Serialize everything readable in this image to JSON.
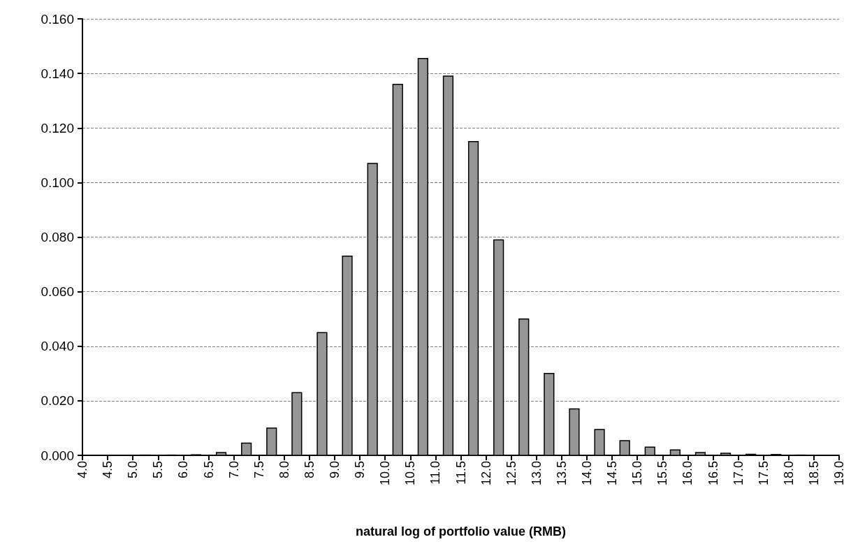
{
  "chart_data": {
    "type": "histogram",
    "xlabel": "natural log of portfolio value (RMB)",
    "bins": [
      4.0,
      4.5,
      5.0,
      5.5,
      6.0,
      6.5,
      7.0,
      7.5,
      8.0,
      8.5,
      9.0,
      9.5,
      10.0,
      10.5,
      11.0,
      11.5,
      12.0,
      12.5,
      13.0,
      13.5,
      14.0,
      14.5,
      15.0,
      15.5,
      16.0,
      16.5,
      17.0,
      17.5,
      18.0,
      18.5,
      19.0
    ],
    "values": [
      0,
      0,
      0.0001,
      0.0001,
      0.0002,
      0.001,
      0.0045,
      0.01,
      0.023,
      0.045,
      0.073,
      0.107,
      0.136,
      0.1455,
      0.139,
      0.115,
      0.079,
      0.05,
      0.03,
      0.017,
      0.0095,
      0.0054,
      0.003,
      0.002,
      0.001,
      0.0008,
      0.0004,
      0.0003,
      0.0001,
      0
    ],
    "color": "#969696",
    "xlim": [
      4,
      19
    ],
    "xticks": [
      {
        "value": 4,
        "label": "4.0"
      },
      {
        "value": 4.5,
        "label": "4.5"
      },
      {
        "value": 5,
        "label": "5.0"
      },
      {
        "value": 5.5,
        "label": "5.5"
      },
      {
        "value": 6,
        "label": "6.0"
      },
      {
        "value": 6.5,
        "label": "6.5"
      },
      {
        "value": 7,
        "label": "7.0"
      },
      {
        "value": 7.5,
        "label": "7.5"
      },
      {
        "value": 8,
        "label": "8.0"
      },
      {
        "value": 8.5,
        "label": "8.5"
      },
      {
        "value": 9,
        "label": "9.0"
      },
      {
        "value": 9.5,
        "label": "9.5"
      },
      {
        "value": 10,
        "label": "10.0"
      },
      {
        "value": 10.5,
        "label": "10.5"
      },
      {
        "value": 11,
        "label": "11.0"
      },
      {
        "value": 11.5,
        "label": "11.5"
      },
      {
        "value": 12,
        "label": "12.0"
      },
      {
        "value": 12.5,
        "label": "12.5"
      },
      {
        "value": 13,
        "label": "13.0"
      },
      {
        "value": 13.5,
        "label": "13.5"
      },
      {
        "value": 14,
        "label": "14.0"
      },
      {
        "value": 14.5,
        "label": "14.5"
      },
      {
        "value": 15,
        "label": "15.0"
      },
      {
        "value": 15.5,
        "label": "15.5"
      },
      {
        "value": 16,
        "label": "16.0"
      },
      {
        "value": 16.5,
        "label": "16.5"
      },
      {
        "value": 17,
        "label": "17.0"
      },
      {
        "value": 17.5,
        "label": "17.5"
      },
      {
        "value": 18,
        "label": "18.0"
      },
      {
        "value": 18.5,
        "label": "18.5"
      },
      {
        "value": 19,
        "label": "19.0"
      }
    ],
    "ylim": [
      0,
      0.16
    ],
    "yticks": [
      {
        "value": 0,
        "label": "0.000"
      },
      {
        "value": 0.02,
        "label": "0.020"
      },
      {
        "value": 0.04,
        "label": "0.040"
      },
      {
        "value": 0.06,
        "label": "0.060"
      },
      {
        "value": 0.08,
        "label": "0.080"
      },
      {
        "value": 0.1,
        "label": "0.100"
      },
      {
        "value": 0.12,
        "label": "0.120"
      },
      {
        "value": 0.14,
        "label": "0.140"
      },
      {
        "value": 0.16,
        "label": "0.160"
      }
    ],
    "grid": "y"
  }
}
